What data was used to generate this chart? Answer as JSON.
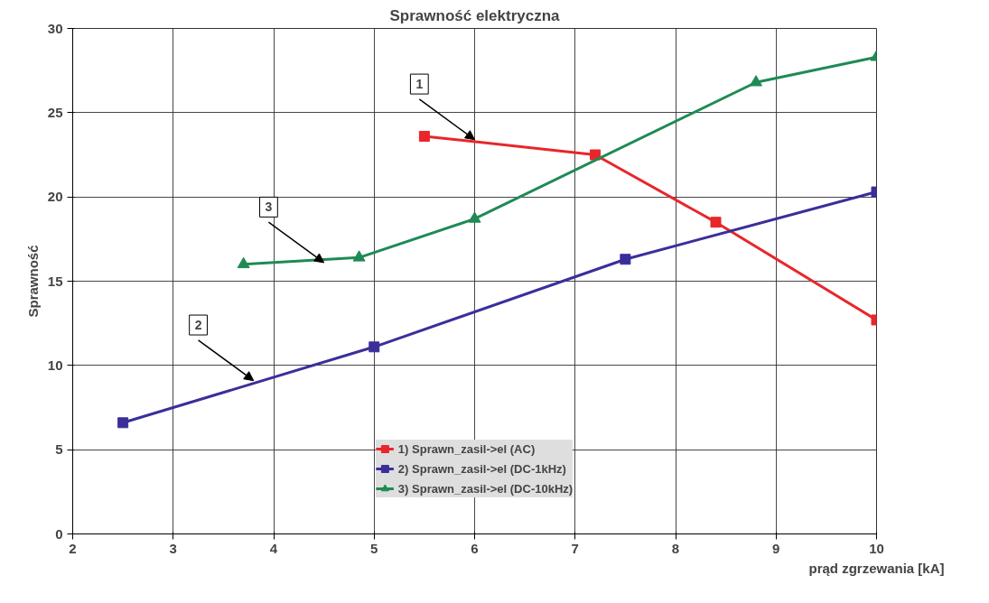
{
  "chart_data": {
    "type": "line",
    "title": "Sprawność elektryczna",
    "xlabel": "prąd zgrzewania [kA]",
    "ylabel": "Sprawność",
    "xlim": [
      2,
      10
    ],
    "xticks": [
      2,
      3,
      4,
      5,
      6,
      7,
      8,
      9,
      10
    ],
    "ylim": [
      0,
      30
    ],
    "yticks": [
      0,
      5,
      10,
      15,
      20,
      25,
      30
    ],
    "grid": true,
    "legend": "bottom",
    "series": [
      {
        "name": "1) Sprawn_zasil->el (AC)",
        "color": "#e8262b",
        "marker": "square",
        "x": [
          5.5,
          7.2,
          8.4,
          10
        ],
        "values": [
          23.6,
          22.5,
          18.5,
          12.7
        ]
      },
      {
        "name": "2) Sprawn_zasil->el (DC-1kHz)",
        "color": "#3a2f9a",
        "marker": "square",
        "x": [
          2.5,
          5,
          7.5,
          10
        ],
        "values": [
          6.6,
          11.1,
          16.3,
          20.3
        ]
      },
      {
        "name": "3) Sprawn_zasil->el (DC-10kHz)",
        "color": "#1f8a55",
        "marker": "triangle",
        "x": [
          3.7,
          4.85,
          6,
          8.8,
          10
        ],
        "values": [
          16.0,
          16.4,
          18.7,
          26.8,
          28.3
        ]
      }
    ],
    "annotations": [
      {
        "text": "1",
        "x": 6.0,
        "y": 23.4
      },
      {
        "text": "2",
        "x": 3.8,
        "y": 9.1
      },
      {
        "text": "3",
        "x": 4.5,
        "y": 16.1
      }
    ]
  }
}
